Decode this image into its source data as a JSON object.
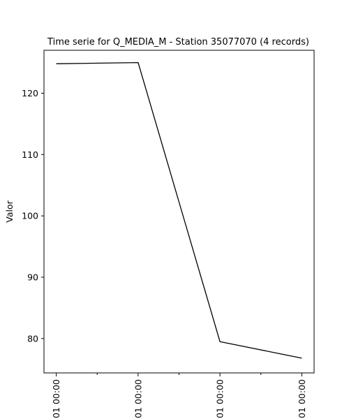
{
  "chart_data": {
    "type": "line",
    "title": "Time serie for Q_MEDIA_M - Station 35077070 (4 records)",
    "xlabel": "",
    "ylabel": "Valor",
    "x_tick_labels": [
      "01 00:00",
      "01 00:00",
      "01 00:00",
      "01 00:00"
    ],
    "y_ticks": [
      80,
      90,
      100,
      110,
      120
    ],
    "ylim": [
      74.4,
      127.0
    ],
    "x_points": 4,
    "series": [
      {
        "values": [
          124.8,
          125.0,
          79.5,
          76.8
        ],
        "color": "#000000"
      }
    ],
    "grid": false,
    "legend": "none"
  }
}
